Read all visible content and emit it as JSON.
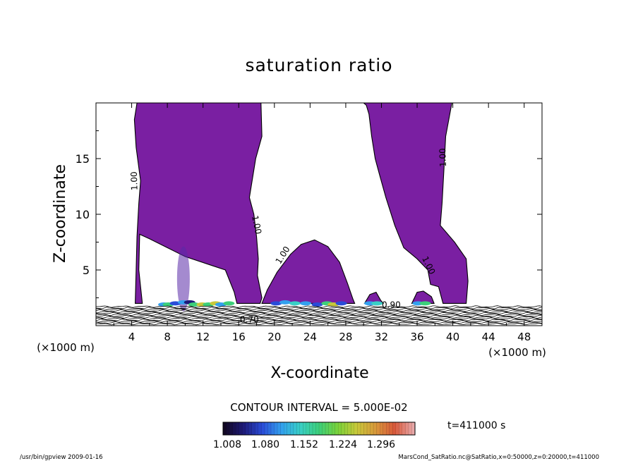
{
  "chart_data": {
    "type": "contour",
    "title": "saturation ratio",
    "xlabel": "X-coordinate",
    "ylabel": "Z-coordinate",
    "x_unit": "(×1000 m)",
    "y_unit": "(×1000 m)",
    "xlim": [
      0,
      50
    ],
    "ylim": [
      0,
      20
    ],
    "x_ticks": [
      4,
      8,
      12,
      16,
      20,
      24,
      28,
      32,
      36,
      40,
      44,
      48
    ],
    "y_ticks": [
      5,
      10,
      15
    ],
    "contour_interval_text": "CONTOUR INTERVAL = 5.000E-02",
    "contour_labels": [
      {
        "text": "1.00",
        "x": 4.6,
        "z": 13.0
      },
      {
        "text": "1.00",
        "x": 17.7,
        "z": 9.0
      },
      {
        "text": "1.00",
        "x": 21.2,
        "z": 6.2
      },
      {
        "text": "1.00",
        "x": 39.2,
        "z": 15.1
      },
      {
        "text": "1.00",
        "x": 37.0,
        "z": 5.3
      },
      {
        "text": "0.90",
        "x": 33.1,
        "z": 1.6
      },
      {
        "text": "0.70",
        "x": 17.2,
        "z": 0.3
      }
    ],
    "filled_regions": [
      {
        "value": 1.008,
        "color": "#7a1fa2",
        "x": [
          4.3,
          18.6
        ],
        "z": [
          2.0,
          20.0
        ]
      },
      {
        "value": 1.008,
        "color": "#7a1fa2",
        "x": [
          18.6,
          29.0
        ],
        "z": [
          2.0,
          7.7
        ]
      },
      {
        "value": 1.008,
        "color": "#7a1fa2",
        "x": [
          30.0,
          41.7
        ],
        "z": [
          2.0,
          20.0
        ]
      }
    ],
    "colorbar": {
      "tick_labels": [
        "1.008",
        "1.080",
        "1.152",
        "1.224",
        "1.296"
      ],
      "range": [
        1.008,
        1.33
      ],
      "colors": [
        "#120824",
        "#1e1a78",
        "#2a4cd8",
        "#33a0ee",
        "#39cfc6",
        "#3ccf7a",
        "#7ad23a",
        "#c8c83a",
        "#d8983a",
        "#d8583a",
        "#e8a8a8"
      ]
    },
    "time_label": "t=411000 s",
    "grid": false
  },
  "footer": {
    "left": "/usr/bin/gpview  2009-01-16",
    "right": "MarsCond_SatRatio.nc@SatRatio,x=0:50000,z=0:20000,t=411000"
  }
}
